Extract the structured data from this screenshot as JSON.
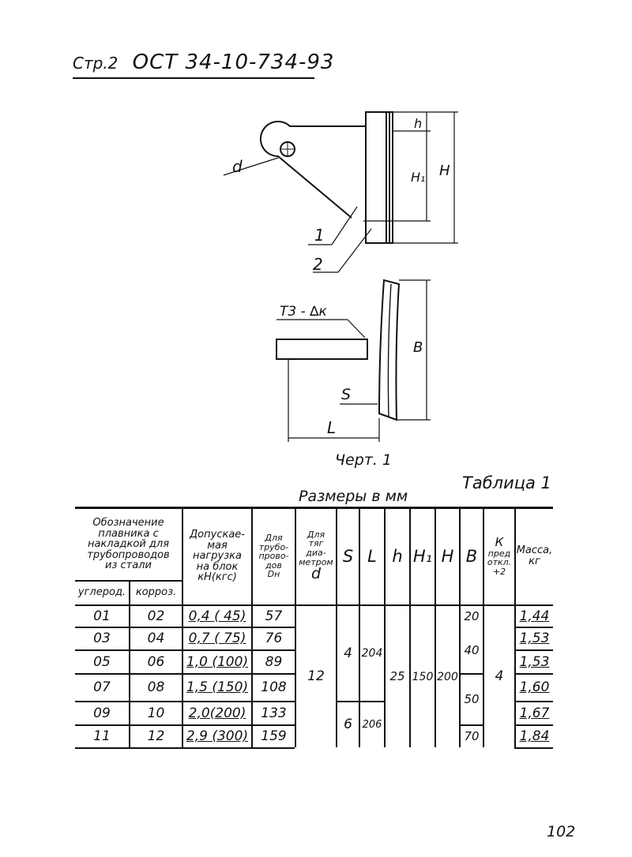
{
  "header": {
    "page_label": "Стр.2",
    "doc_code": "ОСТ 34-10-734-93"
  },
  "figure": {
    "labels": {
      "d": "d",
      "part1": "1",
      "part2": "2",
      "h": "h",
      "H1": "H₁",
      "H": "H",
      "weld": "Т3 - ∆к",
      "B": "B",
      "S": "S",
      "L": "L"
    },
    "caption": "Черт. 1"
  },
  "table": {
    "title": "Таблица 1",
    "units_note": "Размеры в мм",
    "headers": {
      "designation": [
        "Обозначение",
        "плавника с",
        "накладкой для",
        "трубопроводов",
        "из стали"
      ],
      "carbon": "углерод.",
      "corrosion": "корроз.",
      "load": [
        "Допускае-",
        "мая",
        "нагрузка",
        "на блок",
        "кН(кгс)"
      ],
      "pipe": [
        "Для",
        "трубо-",
        "прово-",
        "дов",
        "Dн"
      ],
      "rod": [
        "Для",
        "тяг",
        "диа-",
        "метром",
        "d"
      ],
      "S": "S",
      "L": "L",
      "h": "h",
      "H1": "H₁",
      "H": "H",
      "B": "B",
      "K": [
        "К",
        "пред",
        "откл.",
        "+2"
      ],
      "mass": [
        "Масса,",
        "кг"
      ]
    },
    "rows": [
      {
        "carbon": "01",
        "corr": "02",
        "load": "0,4 ( 45)",
        "dn": "57",
        "mass": "1,44"
      },
      {
        "carbon": "03",
        "corr": "04",
        "load": "0,7 ( 75)",
        "dn": "76",
        "mass": "1,53"
      },
      {
        "carbon": "05",
        "corr": "06",
        "load": "1,0 (100)",
        "dn": "89",
        "mass": "1,53"
      },
      {
        "carbon": "07",
        "corr": "08",
        "load": "1,5 (150)",
        "dn": "108",
        "mass": "1,60"
      },
      {
        "carbon": "09",
        "corr": "10",
        "load": "2,0(200)",
        "dn": "133",
        "mass": "1,67"
      },
      {
        "carbon": "11",
        "corr": "12",
        "load": "2,9 (300)",
        "dn": "159",
        "mass": "1,84"
      }
    ],
    "merged": {
      "d": "12",
      "S_a": "4",
      "S_b": "6",
      "L_a": "204",
      "L_b": "206",
      "h": "25",
      "H1": "150",
      "H": "200",
      "B_1": "20",
      "B_2": "40",
      "B_3": "50",
      "B_4": "70",
      "K": "4"
    }
  },
  "page_number": "102"
}
